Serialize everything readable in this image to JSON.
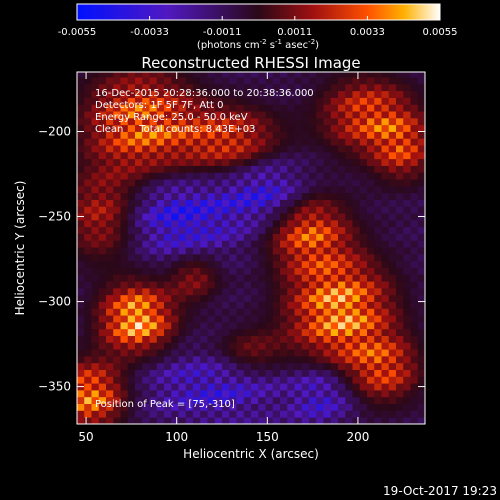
{
  "chart_data": {
    "type": "heatmap",
    "title": "Reconstructed RHESSI Image",
    "xlabel": "Heliocentric X (arcsec)",
    "ylabel": "Heliocentric Y (arcsec)",
    "xlim": [
      45,
      237
    ],
    "ylim": [
      -372,
      -165
    ],
    "x_ticks": [
      50,
      100,
      150,
      200
    ],
    "y_ticks": [
      -200,
      -250,
      -300,
      -350
    ],
    "colorbar": {
      "range": [
        -0.0055,
        0.0055
      ],
      "ticks": [
        "-0.0055",
        "-0.0033",
        "-0.0011",
        "0.0011",
        "0.0033",
        "0.0055"
      ],
      "unit_label": "(photons cm",
      "unit_sup1": "-2",
      "unit_mid": " s",
      "unit_sup2": "-1",
      "unit_mid2": " asec",
      "unit_sup3": "-2",
      "unit_end": ")"
    },
    "annotations": [
      "16-Dec-2015 20:28:36.000 to 20:38:36.000",
      "Detectors: 1F 5F 7F, Att 0",
      "Energy Range: 25.0 - 50.0 keV",
      "Clean     Total counts: 8.43E+03"
    ],
    "peak_label": "Position of Peak = [75,-310]",
    "peak": [
      75,
      -310
    ],
    "blobs": [
      {
        "x": 80,
        "y": -195,
        "sx": 22,
        "sy": 22,
        "a": 0.004
      },
      {
        "x": 60,
        "y": -250,
        "sx": 16,
        "sy": 18,
        "a": 0.003
      },
      {
        "x": 130,
        "y": -205,
        "sx": 20,
        "sy": 14,
        "a": 0.0032
      },
      {
        "x": 205,
        "y": -190,
        "sx": 18,
        "sy": 16,
        "a": 0.0034
      },
      {
        "x": 225,
        "y": -210,
        "sx": 12,
        "sy": 14,
        "a": 0.0028
      },
      {
        "x": 172,
        "y": -258,
        "sx": 16,
        "sy": 16,
        "a": 0.0036
      },
      {
        "x": 190,
        "y": -305,
        "sx": 20,
        "sy": 22,
        "a": 0.0048
      },
      {
        "x": 78,
        "y": -310,
        "sx": 14,
        "sy": 14,
        "a": 0.0052
      },
      {
        "x": 52,
        "y": -355,
        "sx": 14,
        "sy": 14,
        "a": 0.0044
      },
      {
        "x": 215,
        "y": -340,
        "sx": 14,
        "sy": 14,
        "a": 0.003
      },
      {
        "x": 110,
        "y": -285,
        "sx": 10,
        "sy": 10,
        "a": 0.0022
      },
      {
        "x": 140,
        "y": -330,
        "sx": 14,
        "sy": 10,
        "a": 0.002
      },
      {
        "x": 100,
        "y": -250,
        "sx": 24,
        "sy": 16,
        "a": -0.003
      },
      {
        "x": 150,
        "y": -235,
        "sx": 16,
        "sy": 14,
        "a": -0.0026
      },
      {
        "x": 120,
        "y": -350,
        "sx": 26,
        "sy": 14,
        "a": -0.0022
      },
      {
        "x": 180,
        "y": -355,
        "sx": 12,
        "sy": 12,
        "a": -0.0022
      }
    ],
    "footer_timestamp": "19-Oct-2017 19:23"
  }
}
